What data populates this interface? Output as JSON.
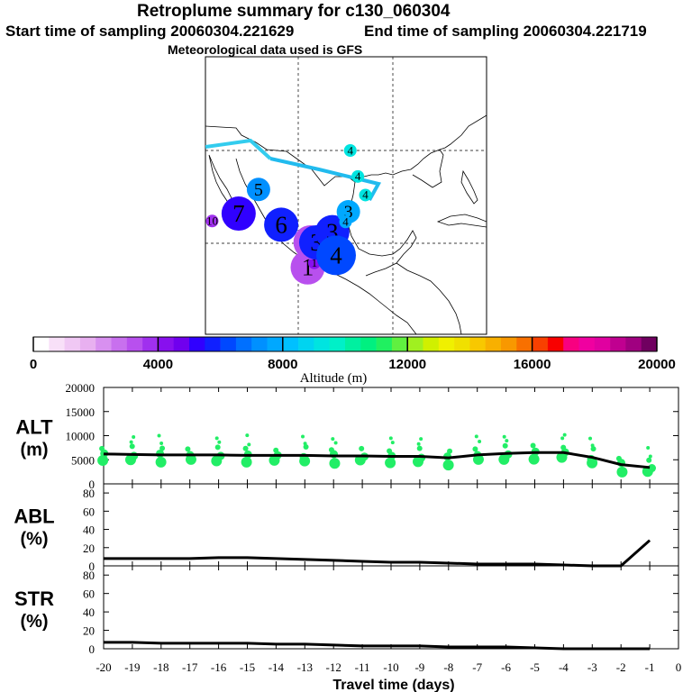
{
  "header": {
    "title": "Retroplume summary for c130_060304",
    "start_time": "Start time of sampling 20060304.221629",
    "end_time": "End time of sampling 20060304.221719",
    "met_data": "Meteorological data used is GFS"
  },
  "chart_data": [
    {
      "type": "map",
      "title": "Retroplume trajectory map",
      "plume_centers": [
        {
          "day": "1",
          "lon": -99.0,
          "lat": 17.4,
          "altitude_m": 3200,
          "size": "large"
        },
        {
          "day": "1",
          "lon": -98.3,
          "lat": 17.9,
          "altitude_m": 4300,
          "size": "small"
        },
        {
          "day": "2",
          "lon": -98.7,
          "lat": 20.1,
          "altitude_m": 3300,
          "size": "large"
        },
        {
          "day": "2",
          "lon": -97.6,
          "lat": 20.6,
          "altitude_m": 5300,
          "size": "medium"
        },
        {
          "day": "2",
          "lon": -96.6,
          "lat": 21.1,
          "altitude_m": 5600,
          "size": "small"
        },
        {
          "day": "3",
          "lon": -98.1,
          "lat": 20.1,
          "altitude_m": 5500,
          "size": "large"
        },
        {
          "day": "3",
          "lon": -96.4,
          "lat": 21.2,
          "altitude_m": 5800,
          "size": "large"
        },
        {
          "day": "3",
          "lon": -94.7,
          "lat": 23.4,
          "altitude_m": 7900,
          "size": "medium"
        },
        {
          "day": "4",
          "lon": -96.0,
          "lat": 18.7,
          "altitude_m": 6100,
          "size": "large"
        },
        {
          "day": "4",
          "lon": -95.0,
          "lat": 22.3,
          "altitude_m": 7600,
          "size": "small"
        },
        {
          "day": "4",
          "lon": -93.7,
          "lat": 27.2,
          "altitude_m": 9200,
          "size": "small"
        },
        {
          "day": "4",
          "lon": -94.5,
          "lat": 30.0,
          "altitude_m": 9200,
          "size": "small"
        },
        {
          "day": "4",
          "lon": -92.9,
          "lat": 25.2,
          "altitude_m": 9000,
          "size": "small"
        },
        {
          "day": "5",
          "lon": -104.2,
          "lat": 25.8,
          "altitude_m": 7300,
          "size": "medium"
        },
        {
          "day": "6",
          "lon": -101.8,
          "lat": 22.0,
          "altitude_m": 5500,
          "size": "large"
        },
        {
          "day": "7",
          "lon": -106.3,
          "lat": 23.2,
          "altitude_m": 5200,
          "size": "large"
        },
        {
          "day": "10",
          "lon": -109.1,
          "lat": 22.4,
          "altitude_m": 3500,
          "size": "small"
        }
      ],
      "colorbar": {
        "label": "Altitude (m)",
        "ticks": [
          "0",
          "4000",
          "8000",
          "12000",
          "16000",
          "20000"
        ],
        "min": 0,
        "max": 20000,
        "bins": 40
      }
    },
    {
      "type": "scatter+line",
      "panel": "ALT",
      "ylabel": "ALT",
      "yunit": "(m)",
      "ylim": [
        0,
        20000
      ],
      "yticks": [
        "0",
        "5000",
        "10000",
        "15000",
        "20000"
      ],
      "x": [
        -20,
        -19,
        -18,
        -17,
        -16,
        -15,
        -14,
        -13,
        -12,
        -11,
        -10,
        -9,
        -8,
        -7,
        -6,
        -5,
        -4,
        -3,
        -2,
        -1
      ],
      "mean_altitude": [
        6200,
        6100,
        6000,
        6000,
        6000,
        5900,
        5900,
        5900,
        5800,
        5800,
        5700,
        5700,
        5400,
        6000,
        6300,
        6500,
        6500,
        5500,
        4000,
        3400
      ]
    },
    {
      "type": "line",
      "panel": "ABL",
      "ylabel": "ABL",
      "yunit": "(%)",
      "ylim": [
        0,
        90
      ],
      "yticks": [
        "0",
        "20",
        "40",
        "60",
        "80"
      ],
      "x": [
        -20,
        -19,
        -18,
        -17,
        -16,
        -15,
        -14,
        -13,
        -12,
        -11,
        -10,
        -9,
        -8,
        -7,
        -6,
        -5,
        -4,
        -3,
        -2,
        -1
      ],
      "values": [
        8,
        8,
        8,
        8,
        9,
        9,
        8,
        7,
        6,
        5,
        4,
        4,
        3,
        2,
        2,
        2,
        1,
        0,
        0,
        28
      ]
    },
    {
      "type": "line",
      "panel": "STR",
      "ylabel": "STR",
      "yunit": "(%)",
      "ylim": [
        0,
        90
      ],
      "yticks": [
        "0",
        "20",
        "40",
        "60",
        "80"
      ],
      "x": [
        -20,
        -19,
        -18,
        -17,
        -16,
        -15,
        -14,
        -13,
        -12,
        -11,
        -10,
        -9,
        -8,
        -7,
        -6,
        -5,
        -4,
        -3,
        -2,
        -1
      ],
      "values": [
        7,
        7,
        6,
        6,
        6,
        6,
        5,
        5,
        4,
        3,
        3,
        3,
        2,
        2,
        2,
        1,
        0,
        0,
        0,
        0
      ],
      "xlabel": "Travel time (days)",
      "xticks": [
        "-20",
        "-19",
        "-18",
        "-17",
        "-16",
        "-15",
        "-14",
        "-13",
        "-12",
        "-11",
        "-10",
        "-9",
        "-8",
        "-7",
        "-6",
        "-5",
        "-4",
        "-3",
        "-2",
        "-1",
        "0"
      ]
    }
  ]
}
